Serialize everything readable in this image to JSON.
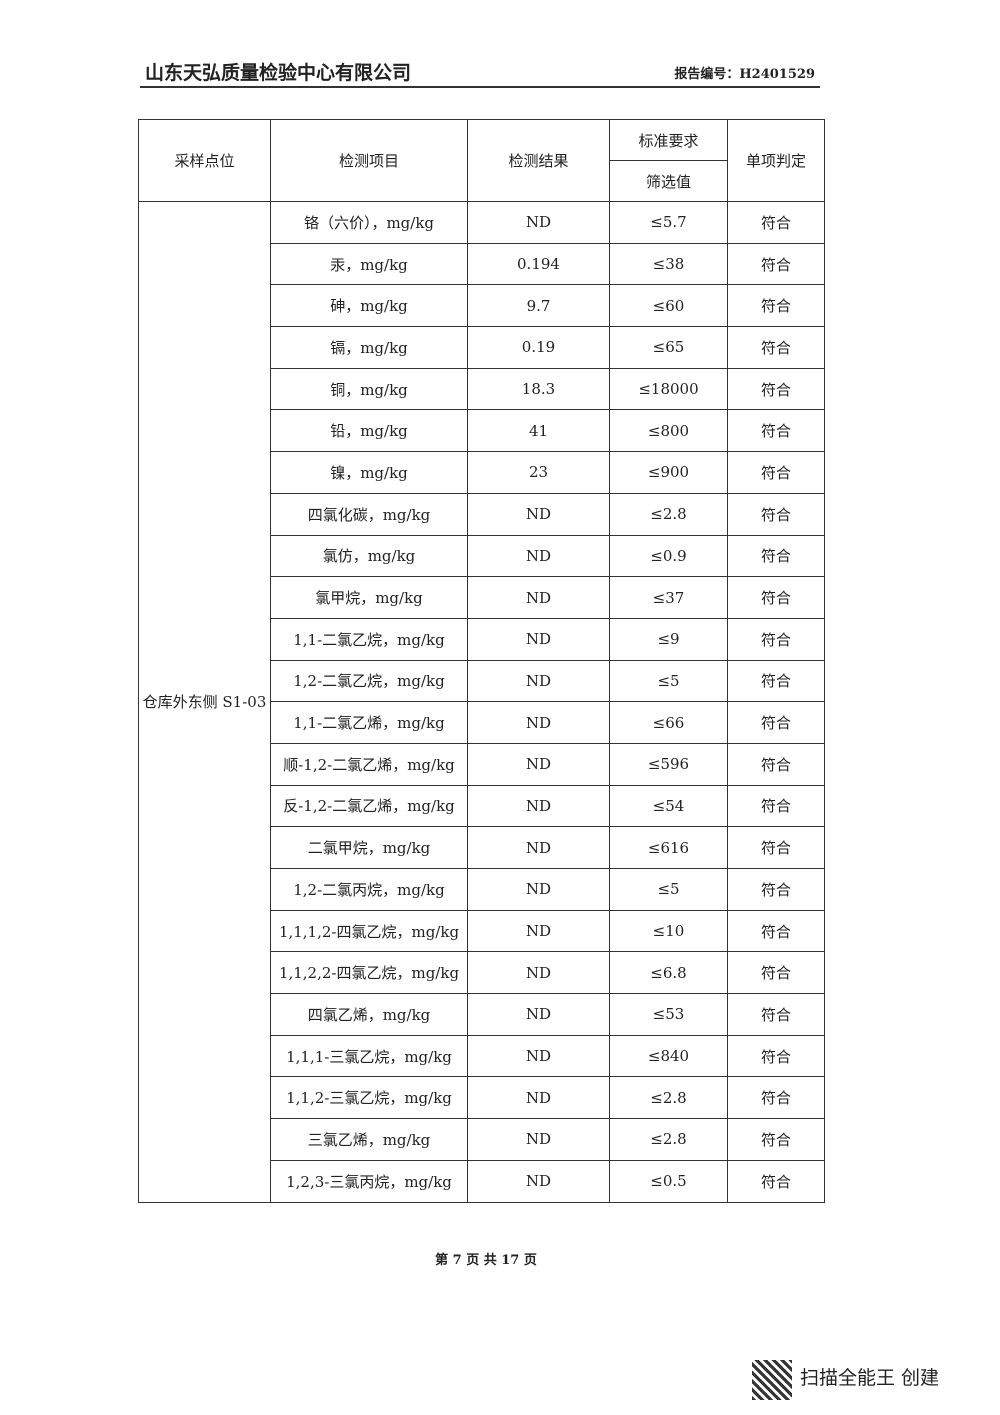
{
  "header": {
    "company": "山东天弘质量检验中心有限公司",
    "report_no": "报告编号：H2401529"
  },
  "table": {
    "columns": {
      "site": "采样点位",
      "item": "检测项目",
      "result": "检测结果",
      "standard": "标准要求",
      "screening": "筛选值",
      "judgment": "单项判定"
    },
    "site": "仓库外东侧 S1-03",
    "rows": [
      [
        "铬（六价），mg/kg",
        "ND",
        "≤5.7",
        "符合"
      ],
      [
        "汞，mg/kg",
        "0.194",
        "≤38",
        "符合"
      ],
      [
        "砷，mg/kg",
        "9.7",
        "≤60",
        "符合"
      ],
      [
        "镉，mg/kg",
        "0.19",
        "≤65",
        "符合"
      ],
      [
        "铜，mg/kg",
        "18.3",
        "≤18000",
        "符合"
      ],
      [
        "铅，mg/kg",
        "41",
        "≤800",
        "符合"
      ],
      [
        "镍，mg/kg",
        "23",
        "≤900",
        "符合"
      ],
      [
        "四氯化碳，mg/kg",
        "ND",
        "≤2.8",
        "符合"
      ],
      [
        "氯仿，mg/kg",
        "ND",
        "≤0.9",
        "符合"
      ],
      [
        "氯甲烷，mg/kg",
        "ND",
        "≤37",
        "符合"
      ],
      [
        "1,1-二氯乙烷，mg/kg",
        "ND",
        "≤9",
        "符合"
      ],
      [
        "1,2-二氯乙烷，mg/kg",
        "ND",
        "≤5",
        "符合"
      ],
      [
        "1,1-二氯乙烯，mg/kg",
        "ND",
        "≤66",
        "符合"
      ],
      [
        "顺-1,2-二氯乙烯，mg/kg",
        "ND",
        "≤596",
        "符合"
      ],
      [
        "反-1,2-二氯乙烯，mg/kg",
        "ND",
        "≤54",
        "符合"
      ],
      [
        "二氯甲烷，mg/kg",
        "ND",
        "≤616",
        "符合"
      ],
      [
        "1,2-二氯丙烷，mg/kg",
        "ND",
        "≤5",
        "符合"
      ],
      [
        "1,1,1,2-四氯乙烷，mg/kg",
        "ND",
        "≤10",
        "符合"
      ],
      [
        "1,1,2,2-四氯乙烷，mg/kg",
        "ND",
        "≤6.8",
        "符合"
      ],
      [
        "四氯乙烯，mg/kg",
        "ND",
        "≤53",
        "符合"
      ],
      [
        "1,1,1-三氯乙烷，mg/kg",
        "ND",
        "≤840",
        "符合"
      ],
      [
        "1,1,2-三氯乙烷，mg/kg",
        "ND",
        "≤2.8",
        "符合"
      ],
      [
        "三氯乙烯，mg/kg",
        "ND",
        "≤2.8",
        "符合"
      ],
      [
        "1,2,3-三氯丙烷，mg/kg",
        "ND",
        "≤0.5",
        "符合"
      ]
    ]
  },
  "footer": {
    "page": "第 7 页 共 17 页"
  },
  "watermark": {
    "text": "扫描全能王 创建"
  }
}
